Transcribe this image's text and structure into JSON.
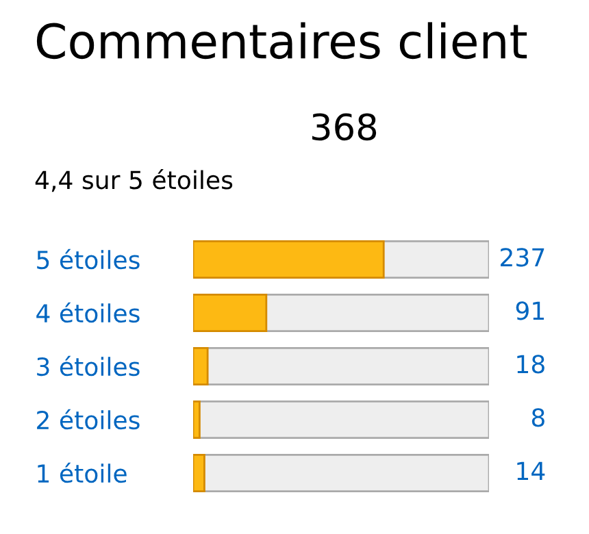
{
  "chart_data": {
    "type": "bar",
    "orientation": "horizontal",
    "title": "Commentaires client",
    "annotations": [
      "368",
      "4,4 sur 5 étoiles"
    ],
    "categories": [
      "5 étoiles",
      "4 étoiles",
      "3 étoiles",
      "2 étoiles",
      "1 étoile"
    ],
    "values": [
      237,
      91,
      18,
      8,
      14
    ],
    "color": "#fdb913",
    "xlim": [
      0,
      368
    ],
    "tick_labels": "y",
    "data_labels": true,
    "grid": false,
    "legend": false
  }
}
